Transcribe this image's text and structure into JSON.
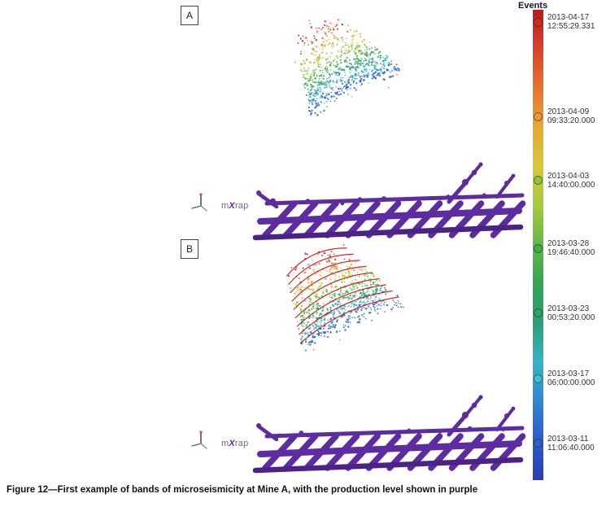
{
  "figure": {
    "caption": "Figure 12—First example of bands of microseismicity at Mine A, with the production level shown in purple"
  },
  "branding": {
    "pre": "m",
    "x": "X",
    "post": "rap"
  },
  "panels": [
    {
      "label": "A"
    },
    {
      "label": "B"
    }
  ],
  "legend": {
    "title": "Events",
    "entries": [
      {
        "date": "2013-04-17",
        "time": "12:55:29.331",
        "color": "#d42a1e",
        "frac": 0.026
      },
      {
        "date": "2013-04-09",
        "time": "09:33:20.000",
        "color": "#e79a35",
        "frac": 0.227
      },
      {
        "date": "2013-04-03",
        "time": "14:40:00.000",
        "color": "#8dc63f",
        "frac": 0.363
      },
      {
        "date": "2013-03-28",
        "time": "19:46:40.000",
        "color": "#44ad48",
        "frac": 0.507
      },
      {
        "date": "2013-03-23",
        "time": "00:53:20.000",
        "color": "#2fa45f",
        "frac": 0.645
      },
      {
        "date": "2013-03-17",
        "time": "06:00:00.000",
        "color": "#3ec1c9",
        "frac": 0.784
      },
      {
        "date": "2013-03-11",
        "time": "11:06:40.000",
        "color": "#2b66c4",
        "frac": 0.922
      }
    ],
    "gradient": [
      "#b81c1c",
      "#d8432a",
      "#e4742e",
      "#e8a834",
      "#d8c838",
      "#a8c93c",
      "#62b846",
      "#31a455",
      "#2ba078",
      "#35b4c4",
      "#2f86d0",
      "#2b5cc6",
      "#2c3db0"
    ]
  },
  "render": {
    "band_colors": [
      "#c22c1e",
      "#dd7029",
      "#ddb232",
      "#bccb3a",
      "#7cc343",
      "#3cab4e",
      "#2f9e78",
      "#36aed0",
      "#2b62c8"
    ],
    "band_counts": [
      26,
      32,
      40,
      55,
      75,
      95,
      120,
      140,
      150
    ],
    "outline_color": "#c41616",
    "structure_color": "#5c2ca0",
    "structure_dark": "#4b2386",
    "axis_colors": {
      "up": "#333a52",
      "left": "#2e8b2e",
      "right": "#8a8a97",
      "tip": "#cf4a2a"
    }
  },
  "chart_data": {
    "type": "scatter",
    "title": "Bands of microseismicity at Mine A",
    "panels": [
      {
        "id": "A",
        "description": "Microseismic event cloud coloured by event time"
      },
      {
        "id": "B",
        "description": "Same event cloud with bands of microseismicity outlined in red"
      }
    ],
    "color_scale": {
      "label": "Events",
      "orientation": "vertical",
      "ticks": [
        "2013-04-17 12:55:29.331",
        "2013-04-09 09:33:20.000",
        "2013-04-03 14:40:00.000",
        "2013-03-28 19:46:40.000",
        "2013-03-23 00:53:20.000",
        "2013-03-17 06:00:00.000",
        "2013-03-11 11:06:40.000"
      ]
    },
    "overlay": "Production level shown in purple",
    "legend_position": "right"
  }
}
